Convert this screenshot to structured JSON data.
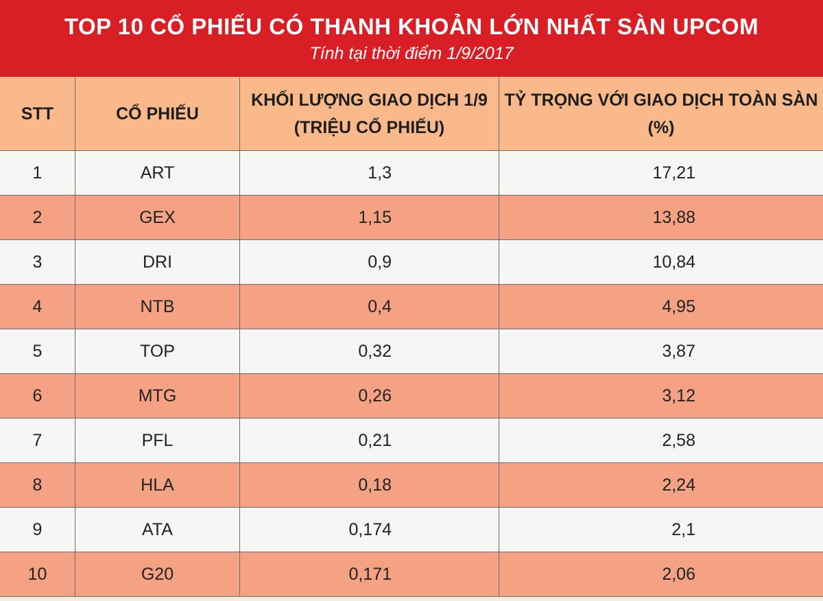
{
  "header": {
    "title": "TOP 10 CỔ PHIẾU CÓ THANH KHOẢN LỚN NHẤT SÀN UPCOM",
    "subtitle": "Tính tại thời điểm 1/9/2017"
  },
  "table": {
    "columns": [
      [
        "STT"
      ],
      [
        "CỔ PHIẾU"
      ],
      [
        "KHỐI LƯỢNG GIAO DỊCH 1/9",
        "(TRIỆU CỔ PHIẾU)"
      ],
      [
        "TỶ TRỌNG VỚI GIAO DỊCH  TOÀN SÀN",
        "(%)"
      ]
    ],
    "rows": [
      [
        "1",
        "ART",
        "1,3",
        "17,21"
      ],
      [
        "2",
        "GEX",
        "1,15",
        "13,88"
      ],
      [
        "3",
        "DRI",
        "0,9",
        "10,84"
      ],
      [
        "4",
        "NTB",
        "0,4",
        "4,95"
      ],
      [
        "5",
        "TOP",
        "0,32",
        "3,87"
      ],
      [
        "6",
        "MTG",
        "0,26",
        "3,12"
      ],
      [
        "7",
        "PFL",
        "0,21",
        "2,58"
      ],
      [
        "8",
        "HLA",
        "0,18",
        "2,24"
      ],
      [
        "9",
        "ATA",
        "0,174",
        "2,1"
      ],
      [
        "10",
        "G20",
        "0,171",
        "2,06"
      ]
    ]
  }
}
